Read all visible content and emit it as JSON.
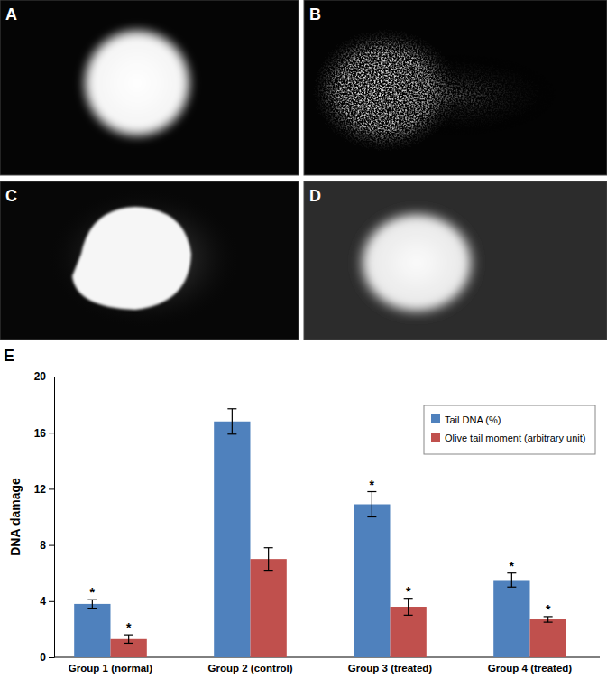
{
  "panels": [
    {
      "label": "A"
    },
    {
      "label": "B"
    },
    {
      "label": "C"
    },
    {
      "label": "D"
    }
  ],
  "chart_data": {
    "type": "bar",
    "panel_label": "E",
    "y_label": "DNA damage",
    "categories": [
      "Group 1 (normal)",
      "Group 2 (control)",
      "Group 3 (treated)",
      "Group 4 (treated)"
    ],
    "series": [
      {
        "name": "Tail DNA (%)",
        "color": "#4f81bd",
        "values": [
          3.8,
          16.8,
          10.9,
          5.5
        ],
        "errors": [
          0.3,
          0.9,
          0.9,
          0.5
        ],
        "significance": [
          "*",
          null,
          "*",
          "*"
        ]
      },
      {
        "name": "Olive tail moment (arbitrary unit)",
        "color": "#c0504d",
        "values": [
          1.3,
          7.0,
          3.6,
          2.7
        ],
        "errors": [
          0.3,
          0.8,
          0.6,
          0.2
        ],
        "significance": [
          "*",
          null,
          "*",
          "*"
        ]
      }
    ],
    "ylim": [
      0,
      20
    ],
    "yticks": [
      0,
      4,
      8,
      12,
      16,
      20
    ],
    "grid": false,
    "legend": "upper right"
  }
}
